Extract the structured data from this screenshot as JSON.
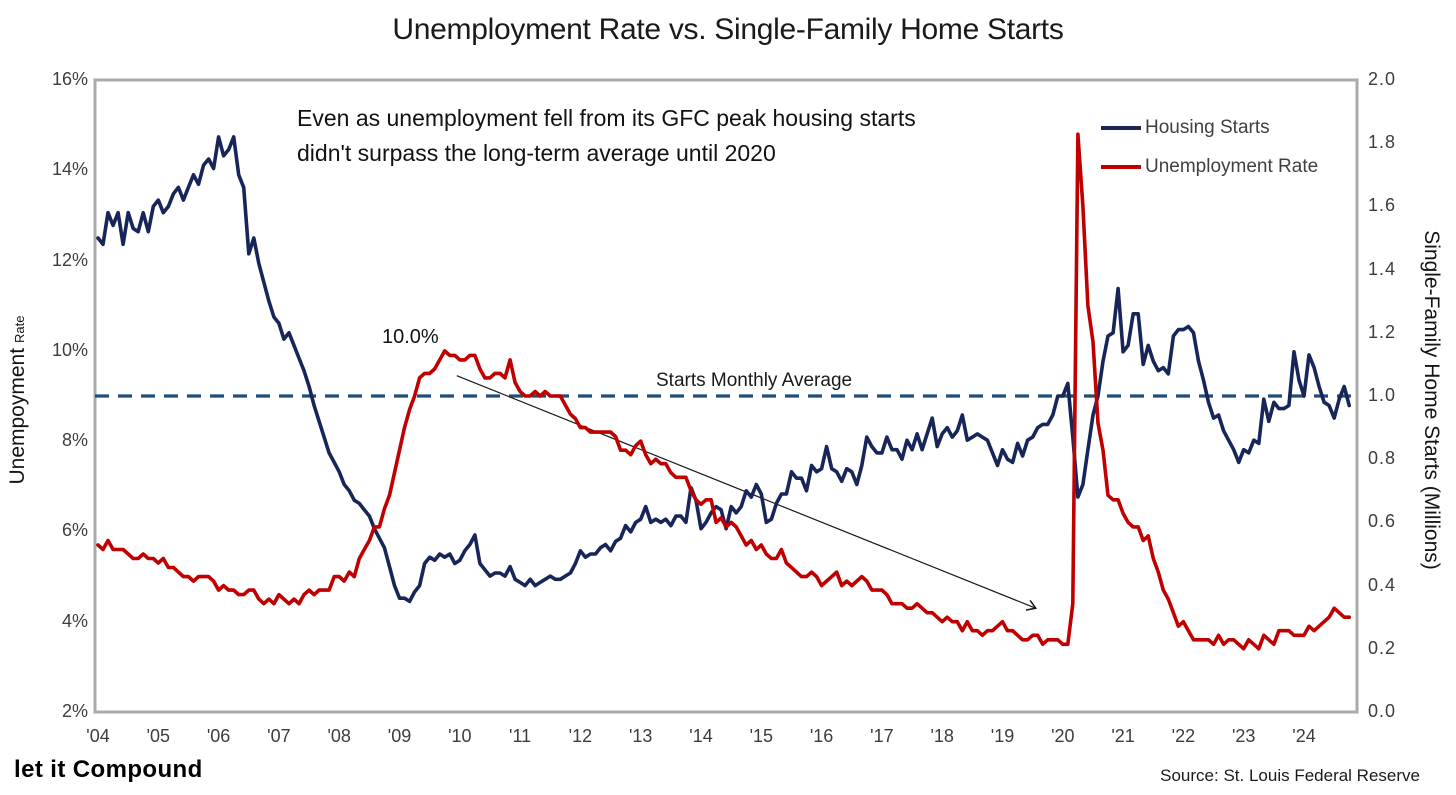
{
  "title": "Unemployment Rate vs. Single-Family Home Starts",
  "annotation": {
    "line1": "Even as unemployment fell from its GFC peak housing starts",
    "line2": "didn't surpass the long-term average until 2020",
    "peak_label": "10.0%"
  },
  "legend": {
    "housing_label": "Housing Starts",
    "unemployment_label": "Unemployment Rate"
  },
  "footer": {
    "brand": "let it Compound",
    "source": "Source: St. Louis Federal Reserve"
  },
  "colors": {
    "housing_line": "#172559",
    "unemployment_line": "#c00000",
    "average_line": "#1f4e79",
    "plot_border": "#ababab",
    "arrow": "#1a1a1a"
  },
  "chart_data": {
    "type": "line",
    "title": "Unemployment Rate vs. Single-Family Home Starts",
    "frequency": "monthly",
    "x_start": "2004-01",
    "x_end": "2024-10",
    "grid": false,
    "legend_position": "top-right",
    "left_axis": {
      "label": "Unempoyment",
      "label_small": "Rate",
      "unit": "%",
      "min": 2,
      "max": 16,
      "tick_values": [
        16,
        14,
        12,
        10,
        8,
        6,
        4,
        2
      ],
      "ticks": [
        "16%",
        "14%",
        "12%",
        "10%",
        "8%",
        "6%",
        "4%",
        "2%"
      ]
    },
    "right_axis": {
      "label": "Single-Family Home Starts (Millions)",
      "min": 0.0,
      "max": 2.0,
      "tick_values": [
        2.0,
        1.8,
        1.6,
        1.4,
        1.2,
        1.0,
        0.8,
        0.6,
        0.4,
        0.2,
        0.0
      ],
      "ticks": [
        "2.0",
        "1.8",
        "1.6",
        "1.4",
        "1.2",
        "1.0",
        "0.8",
        "0.6",
        "0.4",
        "0.2",
        "0.0"
      ]
    },
    "x_axis": {
      "tick_years": [
        2004,
        2005,
        2006,
        2007,
        2008,
        2009,
        2010,
        2011,
        2012,
        2013,
        2014,
        2015,
        2016,
        2017,
        2018,
        2019,
        2020,
        2021,
        2022,
        2023,
        2024
      ],
      "ticks": [
        "'04",
        "'05",
        "'06",
        "'07",
        "'08",
        "'09",
        "'10",
        "'11",
        "'12",
        "'13",
        "'14",
        "'15",
        "'16",
        "'17",
        "'18",
        "'19",
        "'20",
        "'21",
        "'22",
        "'23",
        "'24"
      ]
    },
    "average_line": {
      "value": 1.0,
      "axis": "right",
      "label": "Starts Monthly Average"
    },
    "peak_annotation": {
      "value": "10.0%",
      "year": 2009.8,
      "series": "Unemployment Rate"
    },
    "trend_arrow": {
      "from_year": 2009.95,
      "from_value": 9.45,
      "to_year": 2019.55,
      "to_value": 4.3,
      "value_axis": "left"
    },
    "series": [
      {
        "name": "Housing Starts",
        "axis": "right",
        "values": [
          1.5,
          1.48,
          1.58,
          1.54,
          1.58,
          1.48,
          1.58,
          1.53,
          1.52,
          1.58,
          1.52,
          1.6,
          1.62,
          1.58,
          1.6,
          1.64,
          1.66,
          1.62,
          1.66,
          1.7,
          1.67,
          1.73,
          1.75,
          1.72,
          1.82,
          1.76,
          1.78,
          1.82,
          1.7,
          1.66,
          1.45,
          1.5,
          1.42,
          1.36,
          1.3,
          1.25,
          1.23,
          1.18,
          1.2,
          1.16,
          1.12,
          1.08,
          1.03,
          0.97,
          0.92,
          0.87,
          0.82,
          0.79,
          0.76,
          0.72,
          0.7,
          0.67,
          0.66,
          0.64,
          0.62,
          0.58,
          0.55,
          0.52,
          0.46,
          0.4,
          0.36,
          0.36,
          0.35,
          0.38,
          0.4,
          0.47,
          0.49,
          0.48,
          0.5,
          0.49,
          0.5,
          0.47,
          0.48,
          0.51,
          0.53,
          0.56,
          0.47,
          0.45,
          0.43,
          0.44,
          0.44,
          0.43,
          0.46,
          0.42,
          0.41,
          0.4,
          0.42,
          0.4,
          0.41,
          0.42,
          0.43,
          0.42,
          0.42,
          0.43,
          0.44,
          0.47,
          0.51,
          0.49,
          0.5,
          0.5,
          0.52,
          0.53,
          0.51,
          0.54,
          0.55,
          0.59,
          0.57,
          0.6,
          0.61,
          0.65,
          0.6,
          0.61,
          0.6,
          0.61,
          0.59,
          0.62,
          0.62,
          0.6,
          0.71,
          0.67,
          0.58,
          0.6,
          0.63,
          0.65,
          0.64,
          0.58,
          0.65,
          0.63,
          0.65,
          0.7,
          0.68,
          0.72,
          0.69,
          0.6,
          0.61,
          0.66,
          0.69,
          0.69,
          0.76,
          0.74,
          0.74,
          0.7,
          0.78,
          0.76,
          0.77,
          0.84,
          0.77,
          0.76,
          0.73,
          0.77,
          0.76,
          0.72,
          0.78,
          0.87,
          0.84,
          0.82,
          0.82,
          0.87,
          0.83,
          0.83,
          0.8,
          0.86,
          0.83,
          0.88,
          0.83,
          0.88,
          0.93,
          0.84,
          0.88,
          0.9,
          0.87,
          0.89,
          0.94,
          0.86,
          0.87,
          0.88,
          0.87,
          0.86,
          0.82,
          0.78,
          0.83,
          0.8,
          0.79,
          0.85,
          0.81,
          0.86,
          0.87,
          0.9,
          0.91,
          0.91,
          0.94,
          1.0,
          1.0,
          1.04,
          0.87,
          0.68,
          0.72,
          0.83,
          0.94,
          1.0,
          1.11,
          1.19,
          1.2,
          1.34,
          1.14,
          1.16,
          1.26,
          1.26,
          1.1,
          1.16,
          1.11,
          1.08,
          1.09,
          1.07,
          1.19,
          1.21,
          1.21,
          1.22,
          1.2,
          1.11,
          1.05,
          0.98,
          0.93,
          0.94,
          0.89,
          0.86,
          0.83,
          0.79,
          0.83,
          0.82,
          0.86,
          0.85,
          0.99,
          0.92,
          0.98,
          0.96,
          0.96,
          0.97,
          1.14,
          1.05,
          1.0,
          1.13,
          1.09,
          1.03,
          0.98,
          0.97,
          0.93,
          0.99,
          1.03,
          0.97
        ]
      },
      {
        "name": "Unemployment Rate",
        "axis": "left",
        "values": [
          5.7,
          5.6,
          5.8,
          5.6,
          5.6,
          5.6,
          5.5,
          5.4,
          5.4,
          5.5,
          5.4,
          5.4,
          5.3,
          5.4,
          5.2,
          5.2,
          5.1,
          5.0,
          5.0,
          4.9,
          5.0,
          5.0,
          5.0,
          4.9,
          4.7,
          4.8,
          4.7,
          4.7,
          4.6,
          4.6,
          4.7,
          4.7,
          4.5,
          4.4,
          4.5,
          4.4,
          4.6,
          4.5,
          4.4,
          4.5,
          4.4,
          4.6,
          4.7,
          4.6,
          4.7,
          4.7,
          4.7,
          5.0,
          5.0,
          4.9,
          5.1,
          5.0,
          5.4,
          5.6,
          5.8,
          6.1,
          6.1,
          6.5,
          6.8,
          7.3,
          7.8,
          8.3,
          8.7,
          9.0,
          9.4,
          9.5,
          9.5,
          9.6,
          9.8,
          10.0,
          9.9,
          9.9,
          9.8,
          9.8,
          9.9,
          9.9,
          9.6,
          9.4,
          9.4,
          9.5,
          9.5,
          9.4,
          9.8,
          9.3,
          9.1,
          9.0,
          9.0,
          9.1,
          9.0,
          9.1,
          9.0,
          9.0,
          9.0,
          8.8,
          8.6,
          8.5,
          8.3,
          8.3,
          8.2,
          8.2,
          8.2,
          8.2,
          8.2,
          8.1,
          7.8,
          7.8,
          7.7,
          7.9,
          8.0,
          7.7,
          7.5,
          7.6,
          7.5,
          7.5,
          7.3,
          7.2,
          7.2,
          7.2,
          6.9,
          6.7,
          6.6,
          6.7,
          6.7,
          6.2,
          6.3,
          6.1,
          6.2,
          6.1,
          5.9,
          5.7,
          5.8,
          5.6,
          5.7,
          5.5,
          5.4,
          5.4,
          5.6,
          5.3,
          5.2,
          5.1,
          5.0,
          5.0,
          5.1,
          5.0,
          4.8,
          4.9,
          5.0,
          5.1,
          4.8,
          4.9,
          4.8,
          4.9,
          5.0,
          4.9,
          4.7,
          4.7,
          4.7,
          4.6,
          4.4,
          4.4,
          4.4,
          4.3,
          4.3,
          4.4,
          4.3,
          4.2,
          4.2,
          4.1,
          4.0,
          4.1,
          4.0,
          4.0,
          3.8,
          4.0,
          3.8,
          3.8,
          3.7,
          3.8,
          3.8,
          3.9,
          4.0,
          3.8,
          3.8,
          3.7,
          3.6,
          3.6,
          3.7,
          3.7,
          3.5,
          3.6,
          3.6,
          3.6,
          3.5,
          3.5,
          4.4,
          14.8,
          13.2,
          11.0,
          10.2,
          8.4,
          7.8,
          6.8,
          6.7,
          6.7,
          6.4,
          6.2,
          6.1,
          6.1,
          5.8,
          5.9,
          5.4,
          5.1,
          4.7,
          4.5,
          4.2,
          3.9,
          4.0,
          3.8,
          3.6,
          3.6,
          3.6,
          3.6,
          3.5,
          3.7,
          3.5,
          3.6,
          3.6,
          3.5,
          3.4,
          3.6,
          3.5,
          3.4,
          3.7,
          3.6,
          3.5,
          3.8,
          3.8,
          3.8,
          3.7,
          3.7,
          3.7,
          3.9,
          3.8,
          3.9,
          4.0,
          4.1,
          4.3,
          4.2,
          4.1,
          4.1
        ]
      }
    ]
  }
}
